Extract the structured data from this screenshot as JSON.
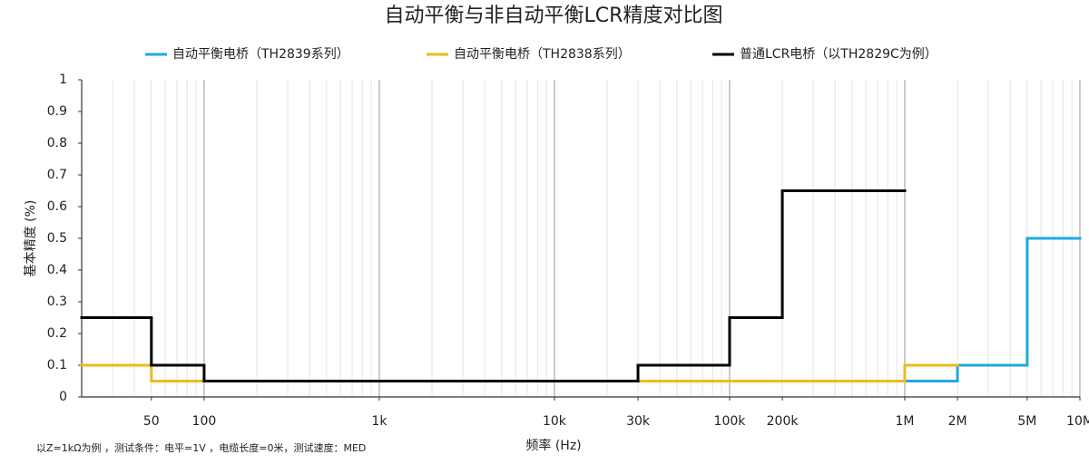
{
  "chart_data": {
    "type": "step",
    "title": "自动平衡与非自动平衡LCR精度对比图",
    "x_label": "频率 (Hz)",
    "y_label": "基本精度 (%)",
    "footnote": "以Z=1kΩ为例 ，测试条件：电平=1V ，电缆长度=0米，测试速度：MED",
    "x_scale": "log",
    "xlim": [
      20,
      10000000
    ],
    "ylim": [
      0,
      1
    ],
    "xticks": [
      50,
      100,
      {
        "value": 1000,
        "label": "1k"
      },
      {
        "value": 10000,
        "label": "10k"
      },
      {
        "value": 30000,
        "label": "30k"
      },
      {
        "value": 100000,
        "label": "100k"
      },
      {
        "value": 200000,
        "label": "200k"
      },
      {
        "value": 1000000,
        "label": "1M"
      },
      {
        "value": 2000000,
        "label": "2M"
      },
      {
        "value": 5000000,
        "label": "5M"
      },
      {
        "value": 10000000,
        "label": "10M"
      }
    ],
    "yticks": [
      0,
      0.1,
      0.2,
      0.3,
      0.4,
      0.5,
      0.6,
      0.7,
      0.8,
      0.9,
      1
    ],
    "grid": true,
    "legend_position": "top",
    "series": [
      {
        "name": "自动平衡电桥（TH2839系列）",
        "color": "#1ea9e1",
        "x": [
          1000000,
          2000000,
          5000000,
          10000000
        ],
        "values": [
          0.05,
          0.1,
          0.5,
          0.5
        ]
      },
      {
        "name": "自动平衡电桥（TH2838系列）",
        "color": "#f2b91c",
        "x": [
          20,
          50,
          1000000,
          2000000
        ],
        "values": [
          0.1,
          0.05,
          0.1,
          0.1
        ]
      },
      {
        "name": "普通LCR电桥（以TH2829C为例）",
        "color": "#000000",
        "x": [
          20,
          50,
          100,
          30000,
          100000,
          200000,
          1000000
        ],
        "values": [
          0.25,
          0.1,
          0.05,
          0.1,
          0.25,
          0.65,
          0.65
        ]
      }
    ]
  }
}
